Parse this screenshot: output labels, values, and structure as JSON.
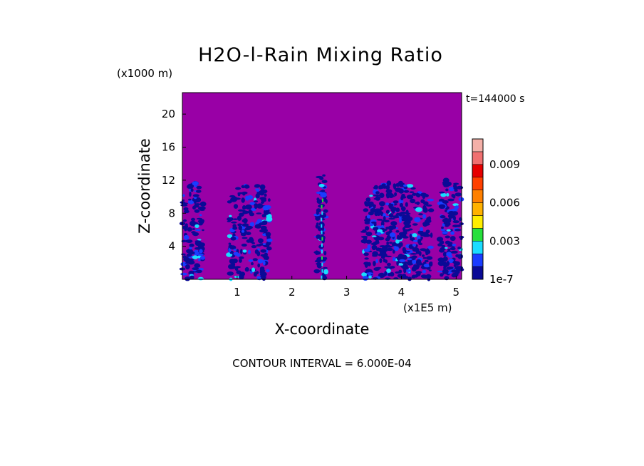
{
  "chart_data": {
    "type": "heatmap",
    "title": "H2O-l-Rain Mixing Ratio",
    "time_label": "t=144000 s",
    "xlabel": "X-coordinate",
    "ylabel": "Z-coordinate",
    "x_unit": "(x1E5 m)",
    "y_unit": "(x1000 m)",
    "xlim": [
      0,
      5.1
    ],
    "ylim": [
      0,
      22.6
    ],
    "x_ticks": [
      {
        "value": 1,
        "label": "1"
      },
      {
        "value": 2,
        "label": "2"
      },
      {
        "value": 3,
        "label": "3"
      },
      {
        "value": 4,
        "label": "4"
      },
      {
        "value": 5,
        "label": "5"
      }
    ],
    "y_ticks": [
      {
        "value": 4,
        "label": "4"
      },
      {
        "value": 8,
        "label": "8"
      },
      {
        "value": 12,
        "label": "12"
      },
      {
        "value": 16,
        "label": "16"
      },
      {
        "value": 20,
        "label": "20"
      }
    ],
    "background_color": "#9900a6",
    "colorbar": {
      "levels": [
        {
          "value": 1e-07,
          "color": "#0a0a96"
        },
        {
          "value": 0.0012,
          "color": "#1a3cff"
        },
        {
          "value": 0.0024,
          "color": "#1adcff"
        },
        {
          "value": 0.003,
          "color": "#26e03c"
        },
        {
          "value": 0.0042,
          "color": "#ffee00"
        },
        {
          "value": 0.0054,
          "color": "#ffb200"
        },
        {
          "value": 0.006,
          "color": "#ff8000"
        },
        {
          "value": 0.0072,
          "color": "#ff4000"
        },
        {
          "value": 0.0084,
          "color": "#e60000"
        },
        {
          "value": 0.009,
          "color": "#f07070"
        },
        {
          "value": 0.0102,
          "color": "#f4b0a8"
        }
      ],
      "labels": [
        {
          "text": "0.009",
          "level_index": 9
        },
        {
          "text": "0.006",
          "level_index": 6
        },
        {
          "text": "0.003",
          "level_index": 3
        },
        {
          "text": "1e-7",
          "level_index": 0
        }
      ]
    },
    "rain_regions": [
      {
        "x_from": 0.0,
        "x_to": 0.38,
        "z_top": 12.3,
        "density": 0.8
      },
      {
        "x_from": 0.85,
        "x_to": 1.6,
        "z_top": 11.8,
        "density": 0.7
      },
      {
        "x_from": 2.45,
        "x_to": 2.63,
        "z_top": 12.8,
        "density": 1.0
      },
      {
        "x_from": 3.3,
        "x_to": 4.55,
        "z_top": 12.0,
        "density": 0.85
      },
      {
        "x_from": 4.7,
        "x_to": 5.1,
        "z_top": 12.6,
        "density": 0.85
      }
    ],
    "footer": "CONTOUR INTERVAL = 6.000E-04"
  }
}
